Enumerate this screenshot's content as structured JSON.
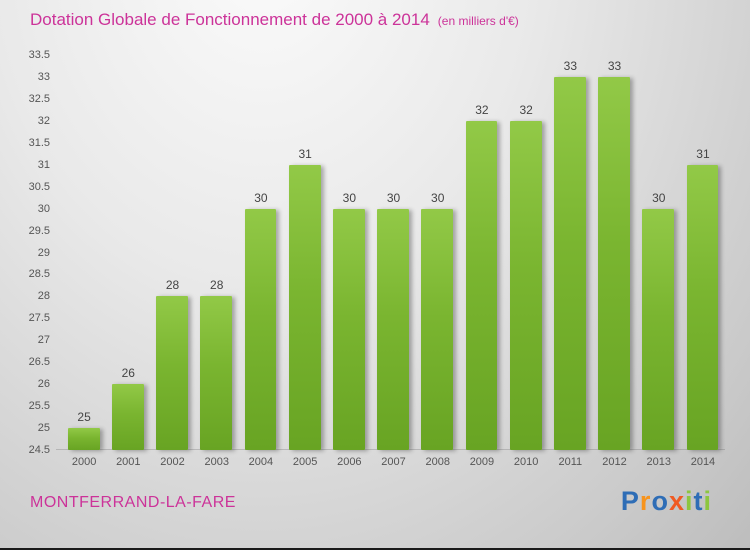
{
  "header": {
    "title": "Dotation Globale de Fonctionnement de 2000 à 2014",
    "subtitle": "(en milliers d'€)"
  },
  "chart_data": {
    "type": "bar",
    "categories": [
      "2000",
      "2001",
      "2002",
      "2003",
      "2004",
      "2005",
      "2006",
      "2007",
      "2008",
      "2009",
      "2010",
      "2011",
      "2012",
      "2013",
      "2014"
    ],
    "values": [
      25,
      26,
      28,
      28,
      30,
      31,
      30,
      30,
      30,
      32,
      32,
      33,
      33,
      30,
      31
    ],
    "title": "Dotation Globale de Fonctionnement de 2000 à 2014",
    "subtitle": "(en milliers d'€)",
    "xlabel": "",
    "ylabel": "",
    "ylim": [
      24.5,
      33.5
    ],
    "ytick_step": 0.5,
    "grid": false,
    "legend": false,
    "bar_color": "#7ab530",
    "value_labels": true
  },
  "footer": {
    "commune": "MONTFERRAND-LA-FARE",
    "logo_letters": [
      {
        "ch": "P",
        "color": "#2e6db6"
      },
      {
        "ch": "r",
        "color": "#f7941d"
      },
      {
        "ch": "o",
        "color": "#2e6db6"
      },
      {
        "ch": "x",
        "color": "#f05a22"
      },
      {
        "ch": "i",
        "color": "#8dc63f"
      },
      {
        "ch": "t",
        "color": "#2e6db6"
      },
      {
        "ch": "i",
        "color": "#8dc63f"
      }
    ]
  },
  "colors": {
    "title": "#cc3399",
    "axis_text": "#555555",
    "value_text": "#444444"
  }
}
